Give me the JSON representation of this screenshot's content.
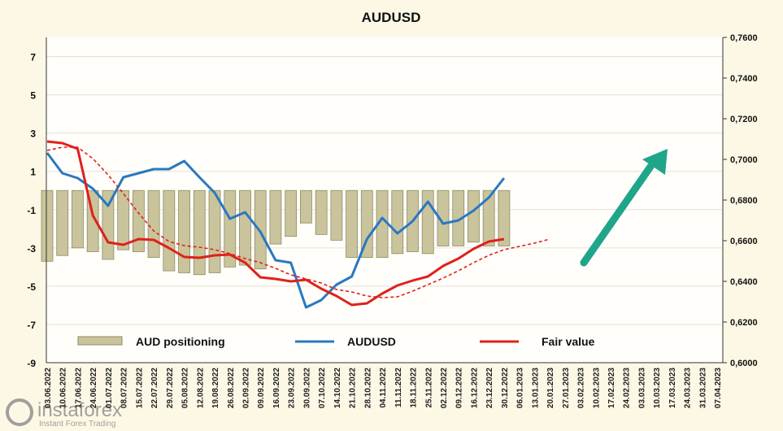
{
  "chart_data": {
    "type": "combo",
    "title": "AUDUSD",
    "categories": [
      "03.06.2022",
      "10.06.2022",
      "17.06.2022",
      "24.06.2022",
      "01.07.2022",
      "08.07.2022",
      "15.07.2022",
      "22.07.2022",
      "29.07.2022",
      "05.08.2022",
      "12.08.2022",
      "19.08.2022",
      "26.08.2022",
      "02.09.2022",
      "09.09.2022",
      "16.09.2022",
      "23.09.2022",
      "30.09.2022",
      "07.10.2022",
      "14.10.2022",
      "21.10.2022",
      "28.10.2022",
      "04.11.2022",
      "11.11.2022",
      "18.11.2022",
      "25.11.2022",
      "02.12.2022",
      "09.12.2022",
      "16.12.2022",
      "23.12.2022",
      "30.12.2022",
      "06.01.2023",
      "13.01.2023",
      "20.01.2023",
      "27.01.2023",
      "03.02.2023",
      "10.02.2023",
      "17.02.2023",
      "24.02.2023",
      "03.03.2023",
      "10.03.2023",
      "17.03.2023",
      "24.03.2023",
      "31.03.2023",
      "07.04.2023"
    ],
    "ylim": [
      -9,
      8
    ],
    "yticks": [
      -9,
      -7,
      -5,
      -3,
      -1,
      1,
      3,
      5,
      7
    ],
    "y2lim": [
      0.6,
      0.76
    ],
    "y2ticks": [
      {
        "value": 0.6,
        "label": "0,6000"
      },
      {
        "value": 0.62,
        "label": "0,6200"
      },
      {
        "value": 0.64,
        "label": "0,6400"
      },
      {
        "value": 0.66,
        "label": "0,6600"
      },
      {
        "value": 0.68,
        "label": "0,6800"
      },
      {
        "value": 0.7,
        "label": "0,7000"
      },
      {
        "value": 0.72,
        "label": "0,7200"
      },
      {
        "value": 0.74,
        "label": "0,7400"
      },
      {
        "value": 0.76,
        "label": "0,7600"
      }
    ],
    "grid": true,
    "series": [
      {
        "name": "AUD positioning",
        "type": "bar",
        "color": "#c9c49b",
        "values": [
          -3.7,
          -3.4,
          -3.0,
          -3.2,
          -3.6,
          -3.1,
          -3.2,
          -3.5,
          -4.2,
          -4.3,
          -4.4,
          -4.3,
          -4.0,
          -3.9,
          -4.1,
          -2.8,
          -2.4,
          -1.7,
          -2.3,
          -2.6,
          -3.5,
          -3.5,
          -3.5,
          -3.3,
          -3.2,
          -3.3,
          -2.9,
          -2.9,
          -2.7,
          -2.9,
          -2.9,
          null,
          null,
          null,
          null,
          null,
          null,
          null,
          null,
          null,
          null,
          null,
          null,
          null,
          null
        ]
      },
      {
        "name": "AUDUSD",
        "type": "line",
        "axis": "y2",
        "color": "#2a78c0",
        "values": [
          0.7032,
          0.6932,
          0.6908,
          0.6856,
          0.6772,
          0.6912,
          0.6932,
          0.6952,
          0.6952,
          0.6992,
          0.6912,
          0.6836,
          0.6708,
          0.674,
          0.6644,
          0.6504,
          0.6492,
          0.6272,
          0.6308,
          0.6384,
          0.6424,
          0.6608,
          0.6712,
          0.6636,
          0.6696,
          0.6792,
          0.6684,
          0.67,
          0.6748,
          0.6812,
          0.6908,
          null,
          null,
          null,
          null,
          null,
          null,
          null,
          null,
          null,
          null,
          null,
          null,
          null,
          null
        ]
      },
      {
        "name": "Fair value",
        "type": "line",
        "axis": "y2",
        "color": "#e0201b",
        "values": [
          0.7088,
          0.708,
          0.7052,
          0.6724,
          0.6592,
          0.658,
          0.6608,
          0.6604,
          0.6564,
          0.652,
          0.6516,
          0.6528,
          0.6532,
          0.6492,
          0.642,
          0.6412,
          0.64,
          0.6408,
          0.6364,
          0.6328,
          0.6284,
          0.6292,
          0.634,
          0.638,
          0.6404,
          0.6424,
          0.6476,
          0.6512,
          0.656,
          0.6596,
          0.6608,
          null,
          null,
          null,
          null,
          null,
          null,
          null,
          null,
          null,
          null,
          null,
          null,
          null,
          null
        ]
      },
      {
        "type": "line",
        "axis": "y2",
        "color": "#e0201b",
        "dashed": true,
        "values": [
          0.7044,
          0.706,
          0.706,
          0.7004,
          0.6924,
          0.6832,
          0.6736,
          0.6648,
          0.6596,
          0.6576,
          0.6568,
          0.6556,
          0.6536,
          0.6512,
          0.6492,
          0.6464,
          0.6432,
          0.6412,
          0.6392,
          0.636,
          0.6348,
          0.6328,
          0.632,
          0.6324,
          0.6352,
          0.6384,
          0.6416,
          0.6452,
          0.6492,
          0.6528,
          0.6556,
          0.6572,
          0.6588,
          0.6608,
          null,
          null,
          null,
          null,
          null,
          null,
          null,
          null,
          null,
          null,
          null
        ]
      }
    ]
  },
  "watermark": {
    "brand": "instaforex",
    "tagline": "Instant Forex Trading"
  }
}
